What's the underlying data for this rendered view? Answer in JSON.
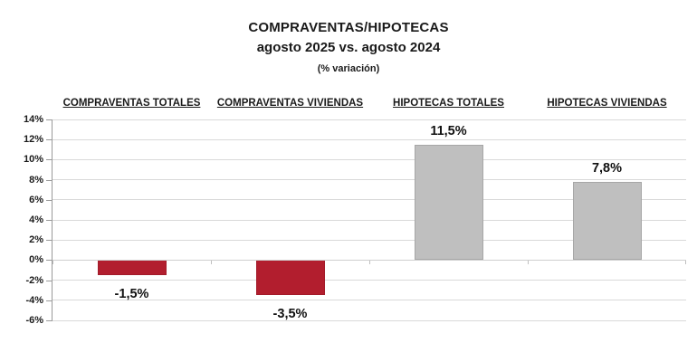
{
  "title": "COMPRAVENTAS/HIPOTECAS",
  "subtitle": "agosto 2025 vs. agosto 2024",
  "note": "(% variación)",
  "chart_data": {
    "type": "bar",
    "title": "COMPRAVENTAS/HIPOTECAS",
    "subtitle": "agosto 2025 vs. agosto 2024",
    "units_note": "(% variación)",
    "categories": [
      "COMPRAVENTAS TOTALES",
      "COMPRAVENTAS VIVIENDAS",
      "HIPOTECAS TOTALES",
      "HIPOTECAS VIVIENDAS"
    ],
    "values": [
      -1.5,
      -3.5,
      11.5,
      7.8
    ],
    "value_labels": [
      "-1,5%",
      "-3,5%",
      "11,5%",
      "7,8%"
    ],
    "bar_colors": [
      "#b21e2e",
      "#b21e2e",
      "#bfbfbf",
      "#bfbfbf"
    ],
    "bar_border_colors": [
      "#a21b2a",
      "#a21b2a",
      "#a6a6a6",
      "#a6a6a6"
    ],
    "xlabel": "",
    "ylabel": "",
    "ylim": [
      -6,
      14
    ],
    "ytick_step": 2,
    "ytick_labels": [
      "14%",
      "12%",
      "10%",
      "8%",
      "6%",
      "4%",
      "2%",
      "0%",
      "-2%",
      "-4%",
      "-6%"
    ],
    "grid": true,
    "legend_position": "none"
  },
  "colors": {
    "gridline": "#d9d9d9",
    "axis": "#9a9a9a",
    "background": "#ffffff",
    "negative_bar": "#b21e2e",
    "positive_bar": "#bfbfbf"
  }
}
